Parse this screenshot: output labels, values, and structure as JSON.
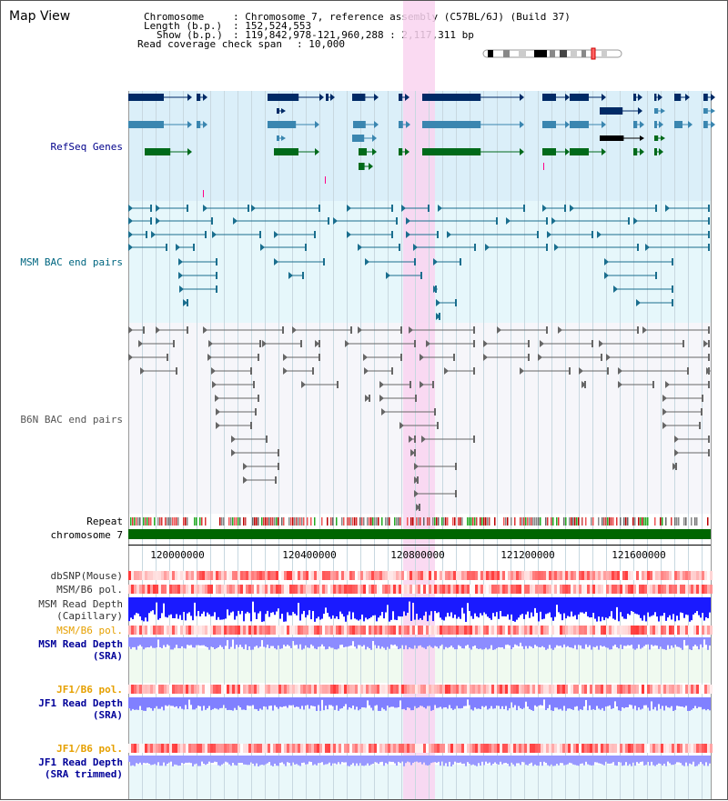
{
  "title": "Map View",
  "info": {
    "chromosome_key": "Chromosome",
    "chromosome_val": ": Chromosome 7, reference assembly (C57BL/6J) (Build 37)",
    "length_key": "Length (b.p.)",
    "length_val": ": 152,524,553",
    "show_key": "Show (b.p.)",
    "show_val": ": 119,842,978-121,960,288 : 2,117,311 bp",
    "span_key": "Read coverage check span",
    "span_val": ": 10,000"
  },
  "tracks": {
    "refseq": "RefSeq Genes",
    "msm_bac": "MSM BAC end pairs",
    "b6n_bac": "B6N BAC end pairs",
    "repeat": "Repeat",
    "chromosome": "chromosome 7",
    "dbsnp": "dbSNP(Mouse)",
    "msm_b6_pol": "MSM/B6 pol.",
    "msm_read_depth_cap": "MSM Read Depth\n(Capillary)",
    "msm_b6_pol_sra": "MSM/B6 pol.",
    "msm_read_depth_sra": "MSM Read Depth\n(SRA)",
    "jf1_b6_pol": "JF1/B6 pol.",
    "jf1_read_depth_sra": "JF1 Read Depth\n(SRA)",
    "jf1_b6_pol_trim": "JF1/B6 pol.",
    "jf1_read_depth_trim": "JF1 Read Depth\n(SRA trimmed)"
  },
  "axis": {
    "ticks": [
      "120000000",
      "120400000",
      "120800000",
      "121200000",
      "121600000"
    ]
  },
  "colors": {
    "refseq_bg": "#dbeff9",
    "msm_bac_bg": "#e6f7fb",
    "b6n_bac_bg": "#f6f6fa",
    "highlight": "#f9d4f0",
    "refseq_label": "#00008b",
    "msm_label": "#006680",
    "b6n_label": "#555555",
    "pol_orange": "#e6a000",
    "read_depth_label": "#000099",
    "chrom_green": "#006600"
  }
}
